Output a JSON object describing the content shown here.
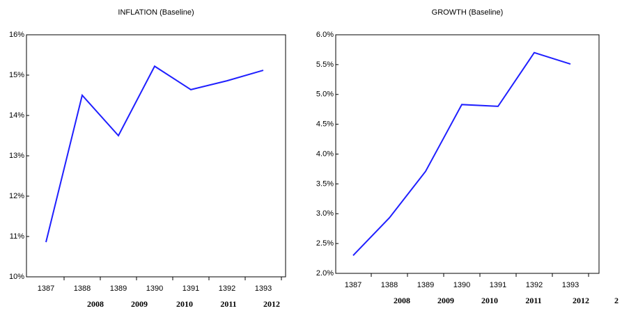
{
  "chart_data": [
    {
      "type": "line",
      "title": "INFLATION (Baseline)",
      "categories": [
        "1387",
        "1388",
        "1389",
        "1390",
        "1391",
        "1392",
        "1393"
      ],
      "series": [
        {
          "color": "#1f1fff",
          "values": [
            10.86,
            14.5,
            13.5,
            15.22,
            14.64,
            14.86,
            15.12
          ]
        }
      ],
      "ylim": [
        10,
        16
      ],
      "yticks": [
        {
          "value": 10,
          "label": "10%"
        },
        {
          "value": 11,
          "label": "11%"
        },
        {
          "value": 12,
          "label": "12%"
        },
        {
          "value": 13,
          "label": "13%"
        },
        {
          "value": 14,
          "label": "14%"
        },
        {
          "value": 15,
          "label": "15%"
        },
        {
          "value": 16,
          "label": "16%"
        }
      ],
      "year_labels": [
        "2008",
        "2009",
        "2010",
        "2011",
        "2012"
      ]
    },
    {
      "type": "line",
      "title": "GROWTH (Baseline)",
      "categories": [
        "1387",
        "1388",
        "1389",
        "1390",
        "1391",
        "1392",
        "1393"
      ],
      "series": [
        {
          "color": "#1f1fff",
          "values": [
            2.3,
            2.93,
            3.71,
            4.83,
            4.8,
            5.7,
            5.51
          ]
        }
      ],
      "ylim": [
        2.0,
        6.0
      ],
      "yticks": [
        {
          "value": 2.0,
          "label": "2.0%"
        },
        {
          "value": 2.5,
          "label": "2.5%"
        },
        {
          "value": 3.0,
          "label": "3.0%"
        },
        {
          "value": 3.5,
          "label": "3.5%"
        },
        {
          "value": 4.0,
          "label": "4.0%"
        },
        {
          "value": 4.5,
          "label": "4.5%"
        },
        {
          "value": 5.0,
          "label": "5.0%"
        },
        {
          "value": 5.5,
          "label": "5.5%"
        },
        {
          "value": 6.0,
          "label": "6.0%"
        }
      ],
      "year_labels": [
        "2008",
        "2009",
        "2010",
        "2011",
        "2012",
        "2"
      ]
    }
  ]
}
